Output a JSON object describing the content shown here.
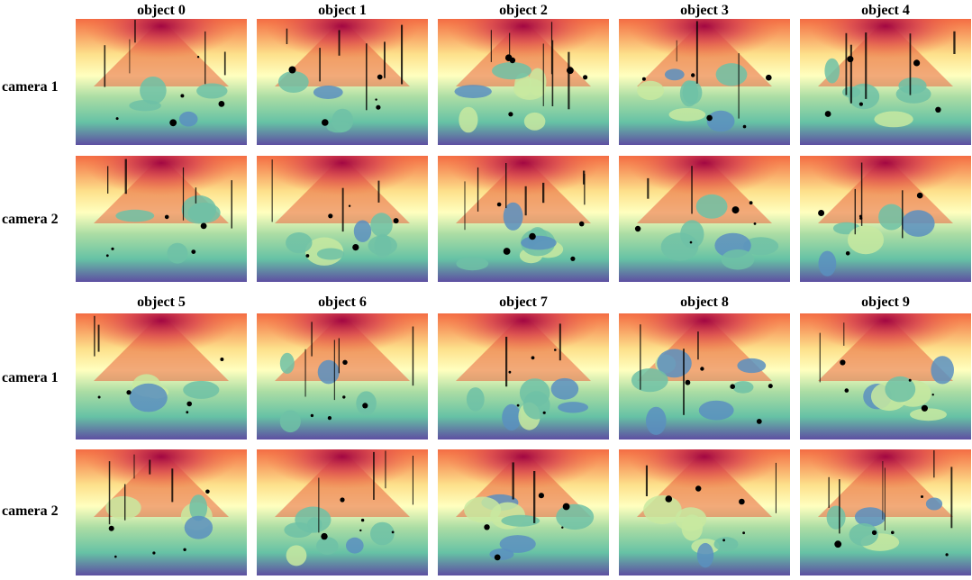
{
  "columns": {
    "top": [
      "object 0",
      "object 1",
      "object 2",
      "object 3",
      "object 4"
    ],
    "bottom": [
      "object 5",
      "object 6",
      "object 7",
      "object 8",
      "object 9"
    ]
  },
  "row_labels": [
    "camera 1",
    "camera 2",
    "camera 1",
    "camera 2"
  ],
  "colors": {
    "far": "#9e0142",
    "mid_warm": "#f46d43",
    "mid": "#ffffbf",
    "mid_cool": "#66c2a5",
    "near": "#5e4fa2",
    "hole": "#000000"
  }
}
